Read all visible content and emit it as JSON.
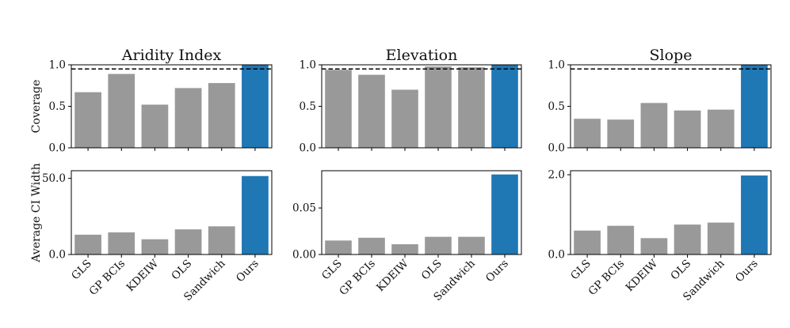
{
  "chart_data": [
    {
      "type": "bar",
      "title": "Aridity Index",
      "categories": [
        "GLS",
        "GP BCIs",
        "KDEIW",
        "OLS",
        "Sandwich",
        "Ours"
      ],
      "panels": [
        {
          "ylabel": "Coverage",
          "ylim": [
            0,
            1.0
          ],
          "ticks": [
            0.0,
            0.5,
            1.0
          ],
          "tick_labels": [
            "0.0",
            "0.5",
            "1.0"
          ],
          "reference_line": 0.95,
          "values": [
            0.67,
            0.89,
            0.52,
            0.72,
            0.78,
            1.0
          ]
        },
        {
          "ylabel": "Average CI Width",
          "ylim": [
            0,
            55
          ],
          "ticks": [
            0,
            50
          ],
          "tick_labels": [
            "0.0",
            "50.0"
          ],
          "values": [
            13,
            14.5,
            10,
            16.5,
            18.5,
            51.5
          ]
        }
      ]
    },
    {
      "type": "bar",
      "title": "Elevation",
      "categories": [
        "GLS",
        "GP BCIs",
        "KDEIW",
        "OLS",
        "Sandwich",
        "Ours"
      ],
      "panels": [
        {
          "ylabel": "",
          "ylim": [
            0,
            1.0
          ],
          "ticks": [
            0.0,
            0.5,
            1.0
          ],
          "tick_labels": [
            "0.0",
            "0.5",
            "1.0"
          ],
          "reference_line": 0.95,
          "values": [
            0.94,
            0.88,
            0.7,
            0.98,
            0.97,
            1.0
          ]
        },
        {
          "ylabel": "",
          "ylim": [
            0,
            0.09
          ],
          "ticks": [
            0,
            0.05
          ],
          "tick_labels": [
            "0.00",
            "0.05"
          ],
          "values": [
            0.015,
            0.018,
            0.011,
            0.019,
            0.019,
            0.086
          ]
        }
      ]
    },
    {
      "type": "bar",
      "title": "Slope",
      "categories": [
        "GLS",
        "GP BCIs",
        "KDEIW",
        "OLS",
        "Sandwich",
        "Ours"
      ],
      "panels": [
        {
          "ylabel": "",
          "ylim": [
            0,
            1.0
          ],
          "ticks": [
            0.0,
            0.5,
            1.0
          ],
          "tick_labels": [
            "0.0",
            "0.5",
            "1.0"
          ],
          "reference_line": 0.95,
          "values": [
            0.35,
            0.34,
            0.54,
            0.45,
            0.46,
            1.0
          ]
        },
        {
          "ylabel": "",
          "ylim": [
            0,
            2.1
          ],
          "ticks": [
            0,
            2.0
          ],
          "tick_labels": [
            "0.0",
            "2.0"
          ],
          "values": [
            0.6,
            0.72,
            0.41,
            0.75,
            0.8,
            1.98
          ]
        }
      ]
    }
  ],
  "colors": {
    "baseline": "#999999",
    "ours": "#1f77b4",
    "reference": "#000000"
  }
}
